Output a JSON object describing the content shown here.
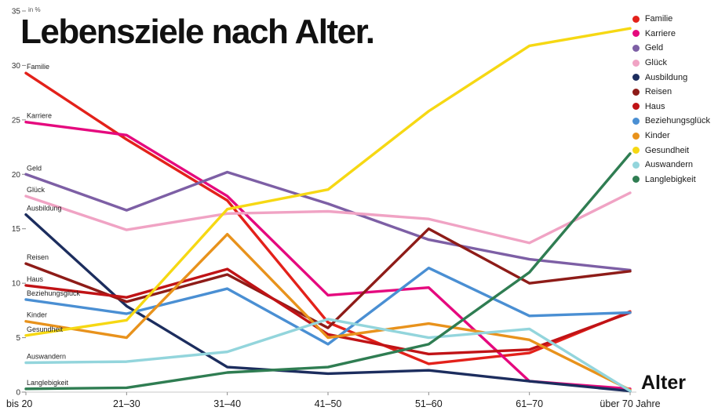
{
  "title": "Lebensziele nach Alter.",
  "y_axis_unit": "in %",
  "x_axis_title": "Alter",
  "chart_data": {
    "type": "line",
    "title": "Lebensziele nach Alter.",
    "xlabel": "Alter",
    "ylabel": "in %",
    "ylim": [
      0,
      35
    ],
    "yticks": [
      0,
      5,
      10,
      15,
      20,
      25,
      30,
      35
    ],
    "grid": false,
    "legend_position": "top-right",
    "categories": [
      "bis 20",
      "21–30",
      "31–40",
      "41–50",
      "51–60",
      "61–70",
      "über 70 Jahre"
    ],
    "series": [
      {
        "name": "Familie",
        "color": "#e3211a",
        "values": [
          29.3,
          23.2,
          17.6,
          6.4,
          2.6,
          3.6,
          7.4
        ]
      },
      {
        "name": "Karriere",
        "color": "#e5097e",
        "values": [
          24.8,
          23.6,
          18.0,
          8.9,
          9.6,
          1.0,
          0.3
        ]
      },
      {
        "name": "Geld",
        "color": "#7d5fa5",
        "values": [
          20.0,
          16.7,
          20.2,
          17.3,
          14.0,
          12.2,
          11.2
        ]
      },
      {
        "name": "Glück",
        "color": "#f0a3c4",
        "values": [
          18.0,
          14.9,
          16.4,
          16.6,
          15.9,
          13.7,
          18.3
        ]
      },
      {
        "name": "Ausbildung",
        "color": "#1c2d5e",
        "values": [
          16.3,
          7.9,
          2.3,
          1.7,
          2.0,
          1.0,
          0.1
        ]
      },
      {
        "name": "Reisen",
        "color": "#8e1c18",
        "values": [
          11.8,
          8.3,
          10.8,
          5.9,
          15.0,
          10.0,
          11.1
        ]
      },
      {
        "name": "Haus",
        "color": "#c01316",
        "values": [
          9.8,
          8.7,
          11.3,
          5.3,
          3.5,
          3.9,
          7.3
        ]
      },
      {
        "name": "Beziehungsglück",
        "color": "#4a8fd3",
        "values": [
          8.5,
          7.2,
          9.5,
          4.4,
          11.4,
          7.0,
          7.3
        ]
      },
      {
        "name": "Kinder",
        "color": "#e8921c",
        "values": [
          6.5,
          5.0,
          14.5,
          5.0,
          6.3,
          4.8,
          0.2
        ]
      },
      {
        "name": "Gesundheit",
        "color": "#f6d813",
        "values": [
          5.2,
          6.6,
          16.8,
          18.6,
          25.8,
          31.8,
          33.4
        ]
      },
      {
        "name": "Auswandern",
        "color": "#93d5dc",
        "values": [
          2.7,
          2.8,
          3.7,
          6.7,
          5.0,
          5.8,
          0.1
        ]
      },
      {
        "name": "Langlebigkeit",
        "color": "#2f7d52",
        "values": [
          0.3,
          0.4,
          1.8,
          2.3,
          4.4,
          11.0,
          21.9
        ]
      }
    ]
  }
}
